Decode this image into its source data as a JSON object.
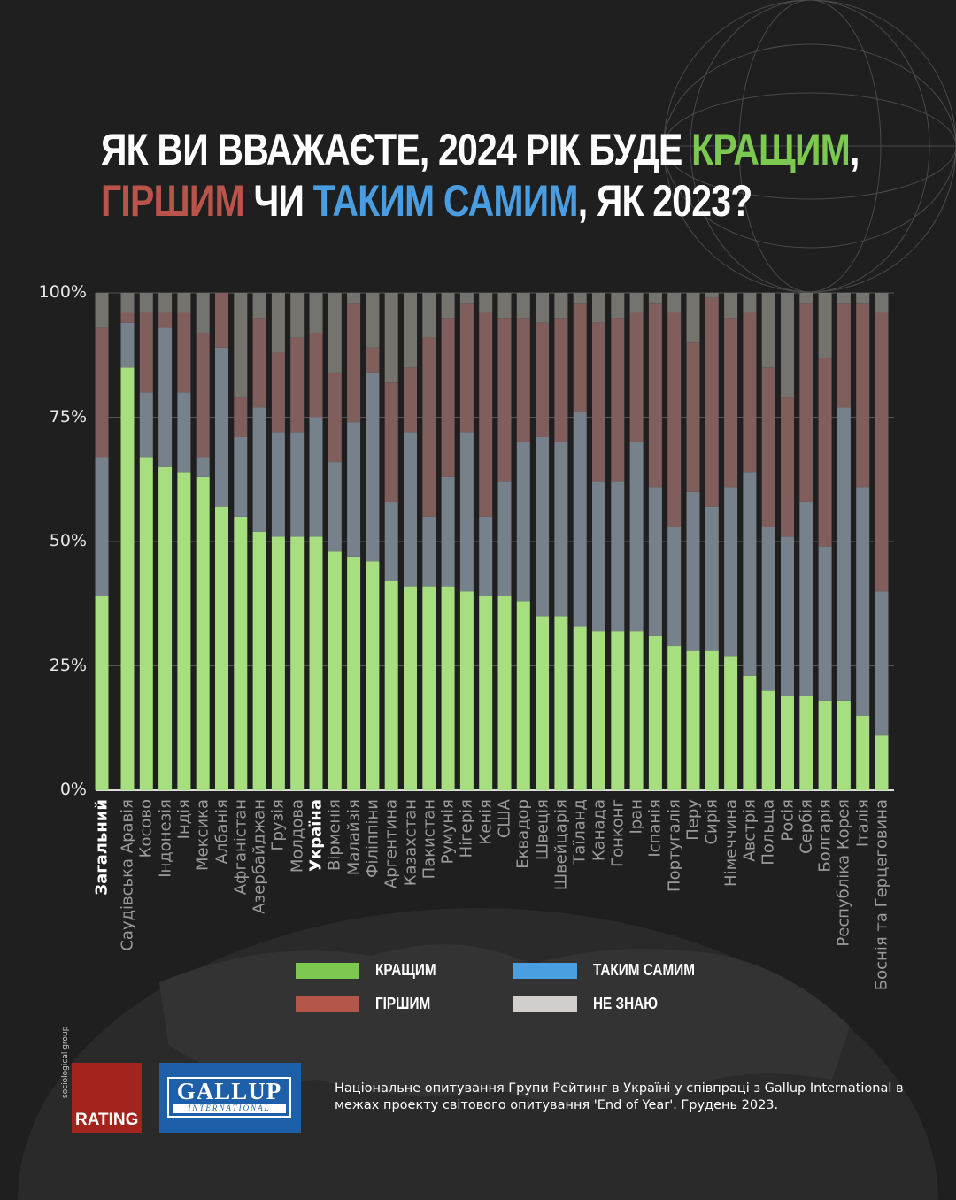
{
  "title": {
    "line1_prefix": "ЯК ВИ ВВАЖАЄТЕ, 2024 РІК БУДЕ ",
    "better_word": "КРАЩИМ",
    "line1_suffix": ",",
    "worse_word": "ГІРШИМ",
    "or_word": " ЧИ ",
    "same_word": "ТАКИМ САМИМ",
    "line2_suffix": ", ЯК 2023?"
  },
  "colors": {
    "title_better": "#7bc950",
    "title_worse": "#b9544a",
    "title_same": "#4a9de0",
    "bar_better": "#a6de80",
    "bar_same": "#77818b",
    "bar_worse": "#7f5e5c",
    "bar_dont_know": "#74736d",
    "legend_better": "#7cc850",
    "legend_worse": "#b5564a",
    "legend_same": "#4a9fe0",
    "legend_dont_know": "#d2cecb",
    "background": "#1f1f1f"
  },
  "chart_data": {
    "type": "bar",
    "stacked": true,
    "ylim": [
      0,
      100
    ],
    "yticks": [
      "0%",
      "25%",
      "50%",
      "75%",
      "100%"
    ],
    "grid": true,
    "legend_placement": "bottom",
    "highlighted": [
      "Загальний",
      "Україна"
    ],
    "categories": [
      "Загальний",
      "Саудівська Аравія",
      "Косово",
      "Індонезія",
      "Індія",
      "Мексика",
      "Албанія",
      "Афганістан",
      "Азербайджан",
      "Грузія",
      "Молдова",
      "Україна",
      "Вірменія",
      "Малайзія",
      "Філіппіни",
      "Аргентина",
      "Казахстан",
      "Пакистан",
      "Румунія",
      "Нігерія",
      "Кенія",
      "США",
      "Еквадор",
      "Швеція",
      "Швейцарія",
      "Таїланд",
      "Канада",
      "Гонконг",
      "Іран",
      "Іспанія",
      "Португалія",
      "Перу",
      "Сирія",
      "Німеччина",
      "Австрія",
      "Польща",
      "Росія",
      "Сербія",
      "Болгарія",
      "Республіка Корея",
      "Італія",
      "Боснія та Герцеговина"
    ],
    "series": [
      {
        "name": "КРАЩИМ",
        "values": [
          39,
          85,
          67,
          65,
          64,
          63,
          57,
          55,
          52,
          51,
          51,
          51,
          48,
          47,
          46,
          42,
          41,
          41,
          41,
          40,
          39,
          39,
          38,
          35,
          35,
          33,
          32,
          32,
          32,
          31,
          29,
          28,
          28,
          27,
          23,
          20,
          19,
          19,
          18,
          18,
          15,
          11
        ]
      },
      {
        "name": "ТАКИМ САМИМ",
        "values": [
          28,
          9,
          13,
          28,
          16,
          4,
          32,
          16,
          25,
          21,
          21,
          24,
          18,
          27,
          38,
          16,
          31,
          14,
          22,
          32,
          16,
          23,
          32,
          36,
          35,
          43,
          30,
          30,
          38,
          30,
          24,
          32,
          29,
          34,
          41,
          33,
          32,
          39,
          31,
          59,
          46,
          29
        ]
      },
      {
        "name": "ГІРШИМ",
        "values": [
          26,
          2,
          16,
          3,
          16,
          25,
          11,
          8,
          18,
          16,
          19,
          17,
          18,
          24,
          5,
          24,
          13,
          36,
          32,
          26,
          41,
          33,
          25,
          23,
          25,
          22,
          32,
          33,
          26,
          37,
          43,
          30,
          42,
          34,
          32,
          32,
          28,
          40,
          38,
          21,
          37,
          56
        ]
      },
      {
        "name": "НЕ ЗНАЮ",
        "values": [
          7,
          4,
          4,
          4,
          4,
          8,
          0,
          21,
          5,
          12,
          9,
          8,
          16,
          2,
          11,
          18,
          15,
          9,
          5,
          2,
          4,
          5,
          5,
          6,
          5,
          2,
          6,
          5,
          4,
          2,
          4,
          10,
          1,
          5,
          4,
          15,
          21,
          2,
          13,
          2,
          2,
          4
        ]
      }
    ]
  },
  "legend": {
    "better": "КРАЩИМ",
    "same": "ТАКИМ САМИМ",
    "worse": "ГІРШИМ",
    "dont_know": "НЕ ЗНАЮ"
  },
  "logos": {
    "rating": "RATING",
    "rating_sub": "sociological group",
    "gallup": "GALLUP",
    "gallup_sub": "INTERNATIONAL"
  },
  "source": "Національне опитування Групи Рейтинг в Україні у співпраці з Gallup International в межах проекту світового опитування 'End of Year'. Грудень 2023."
}
